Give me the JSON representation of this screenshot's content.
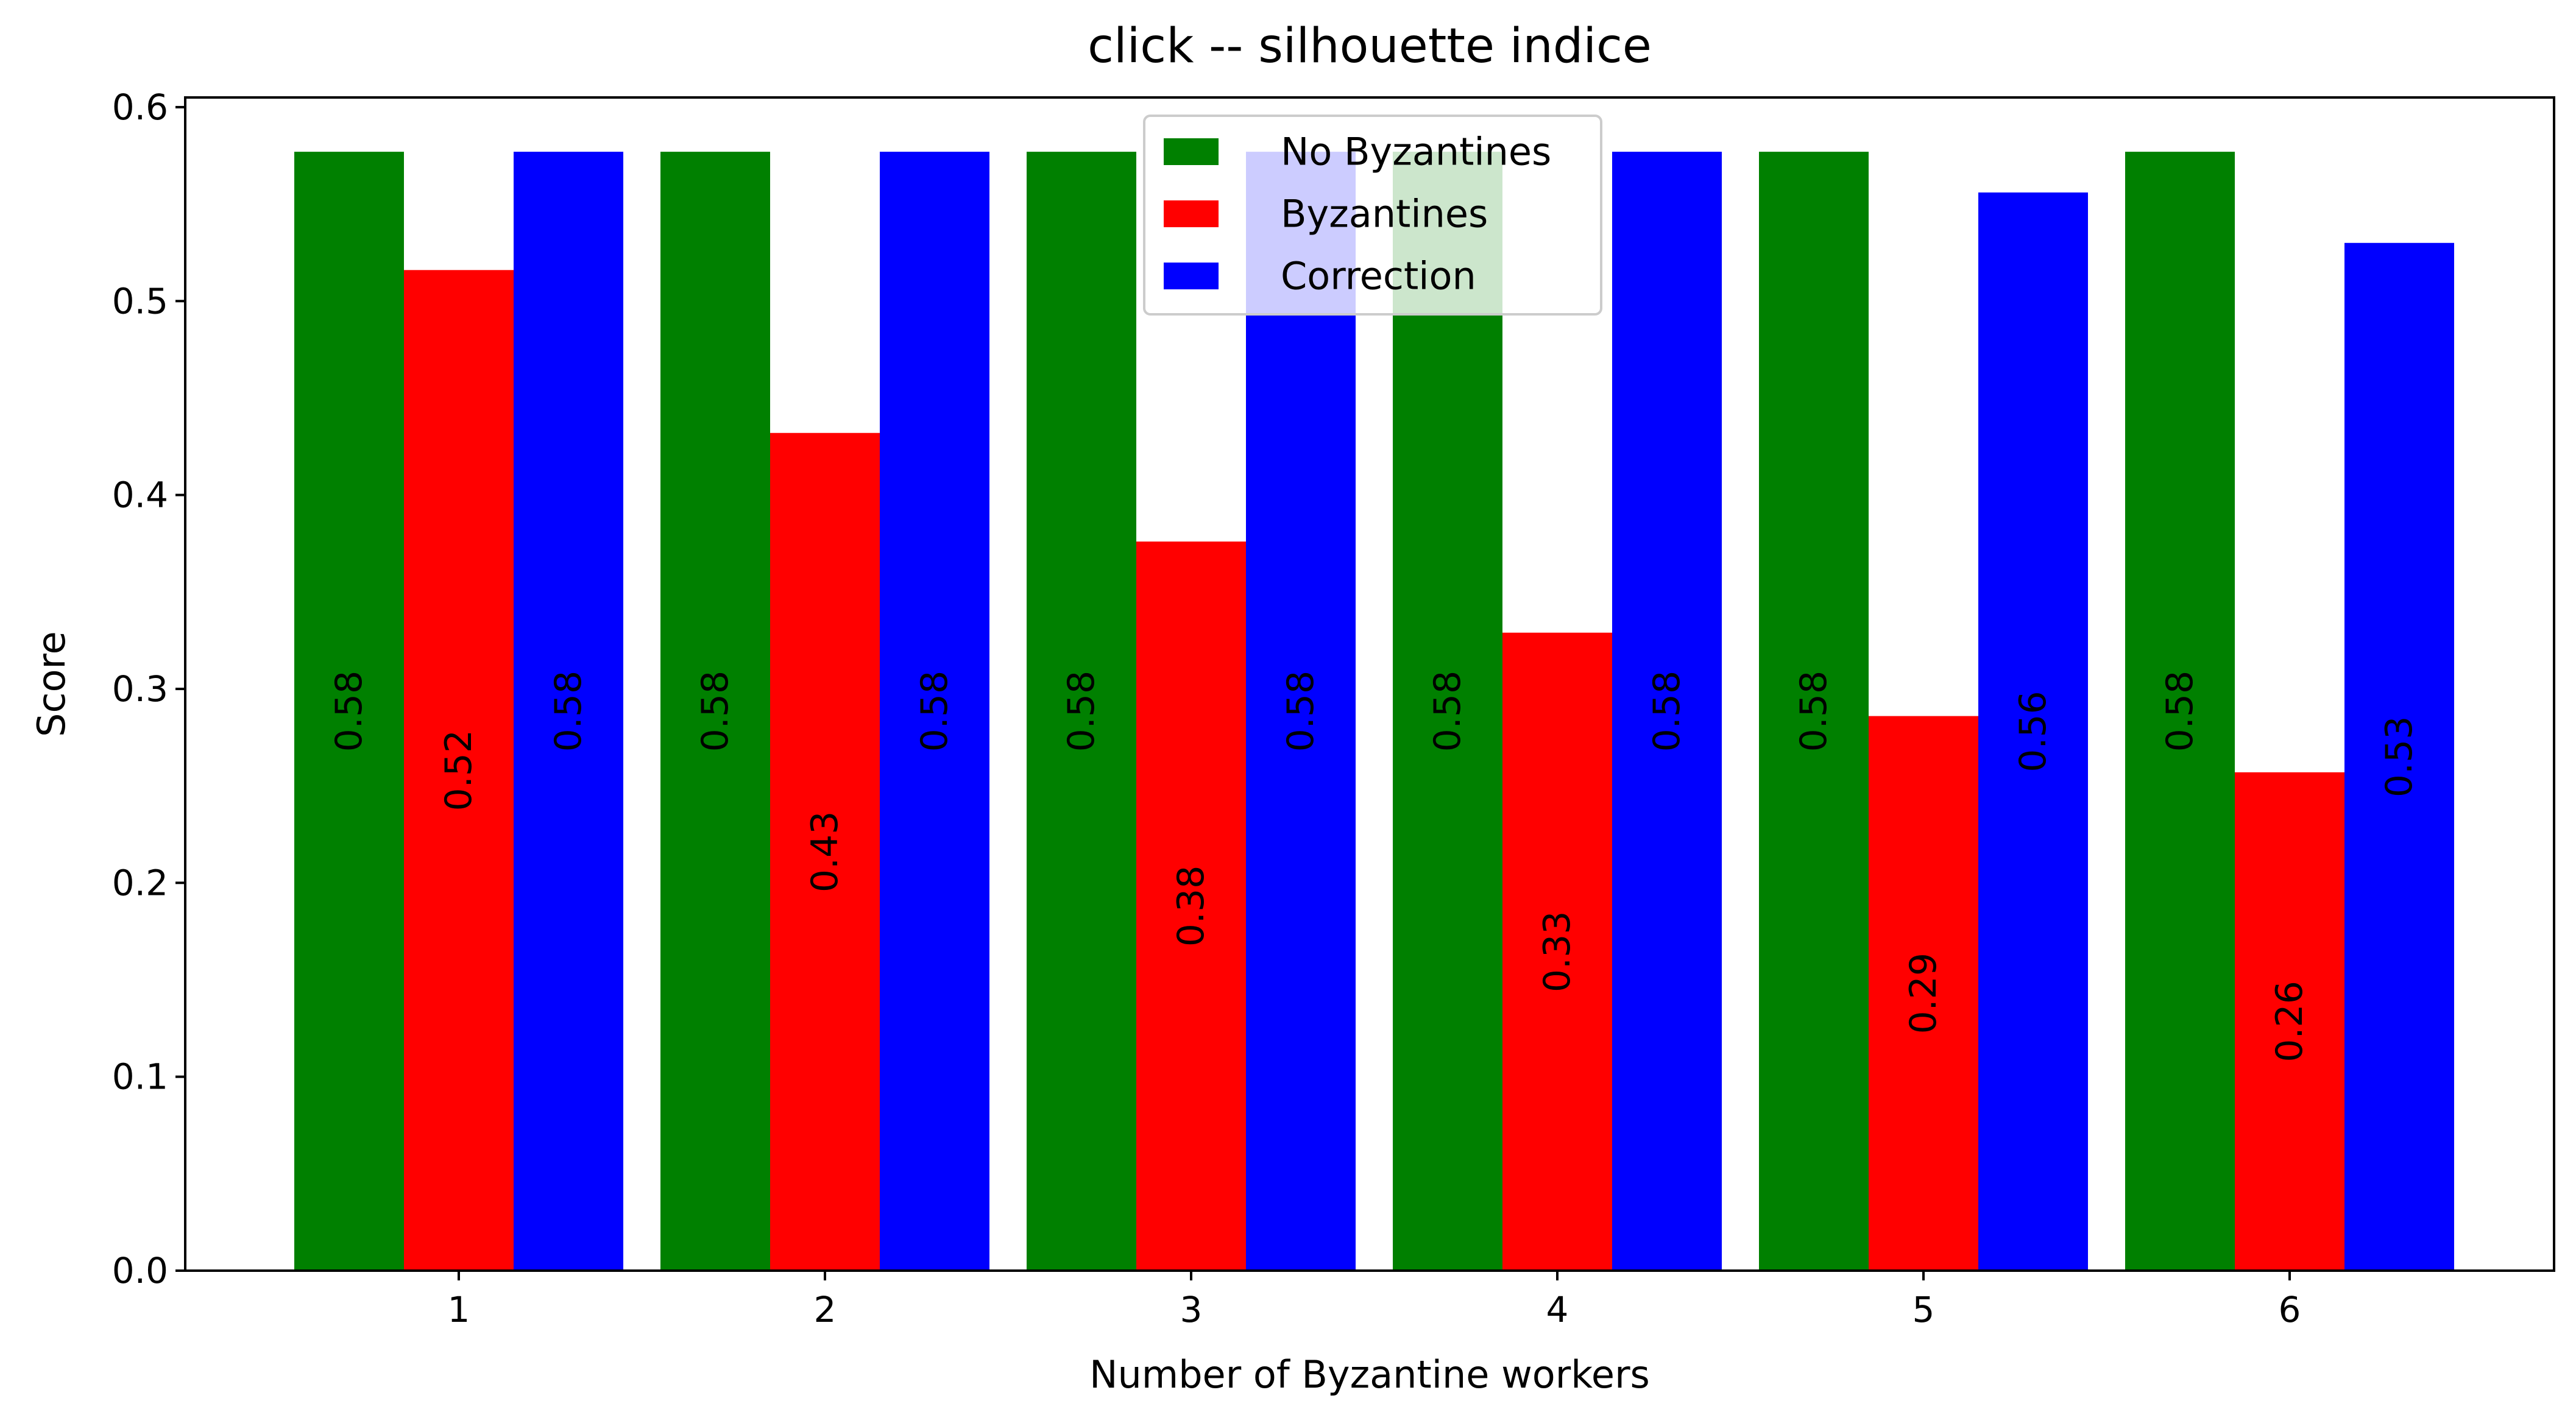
{
  "chart_data": {
    "type": "bar",
    "title": "click -- silhouette indice",
    "xlabel": "Number of Byzantine workers",
    "ylabel": "Score",
    "categories": [
      "1",
      "2",
      "3",
      "4",
      "5",
      "6"
    ],
    "ylim": [
      0,
      0.605
    ],
    "yticks": [
      0.0,
      0.1,
      0.2,
      0.3,
      0.4,
      0.5,
      0.6
    ],
    "ytick_labels": [
      "0.0",
      "0.1",
      "0.2",
      "0.3",
      "0.4",
      "0.5",
      "0.6"
    ],
    "grid": false,
    "legend_position": "top-center",
    "series": [
      {
        "name": "No Byzantines",
        "color": "#008000",
        "values": [
          0.577,
          0.577,
          0.577,
          0.577,
          0.577,
          0.577
        ],
        "labels": [
          "0.58",
          "0.58",
          "0.58",
          "0.58",
          "0.58",
          "0.58"
        ]
      },
      {
        "name": "Byzantines",
        "color": "#ff0000",
        "values": [
          0.516,
          0.432,
          0.376,
          0.329,
          0.286,
          0.257
        ],
        "labels": [
          "0.52",
          "0.43",
          "0.38",
          "0.33",
          "0.29",
          "0.26"
        ]
      },
      {
        "name": "Correction",
        "color": "#0000ff",
        "values": [
          0.577,
          0.577,
          0.577,
          0.577,
          0.556,
          0.53
        ],
        "labels": [
          "0.58",
          "0.58",
          "0.58",
          "0.58",
          "0.56",
          "0.53"
        ]
      }
    ]
  }
}
